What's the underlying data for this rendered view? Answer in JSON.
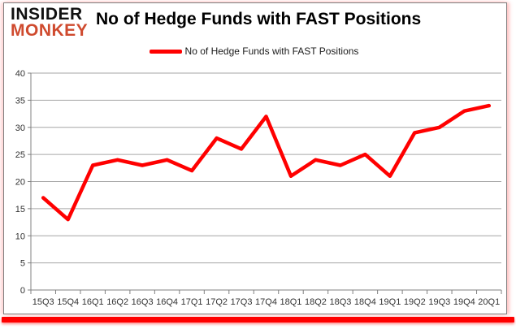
{
  "logo": {
    "line1": "INSIDER",
    "line2": "MONKEY"
  },
  "header": {
    "title": "No of Hedge Funds with FAST Positions"
  },
  "legend": {
    "label": "No of Hedge Funds with FAST Positions"
  },
  "colors": {
    "line": "#ff0000",
    "logo_text": "#111111",
    "logo_accent": "#cf4a2e",
    "gridline": "#a6a6a6",
    "axis": "#808080",
    "tick_label": "#333333",
    "frame_border": "#7f7f7f",
    "bottom_bar": "#ff0000"
  },
  "chart_data": {
    "type": "line",
    "title": "No of Hedge Funds with FAST Positions",
    "categories": [
      "15Q3",
      "15Q4",
      "16Q1",
      "16Q2",
      "16Q3",
      "16Q4",
      "17Q1",
      "17Q2",
      "17Q3",
      "17Q4",
      "18Q1",
      "18Q2",
      "18Q3",
      "18Q4",
      "19Q1",
      "19Q2",
      "19Q3",
      "19Q4",
      "20Q1"
    ],
    "series": [
      {
        "name": "No of Hedge Funds with FAST Positions",
        "values": [
          17,
          13,
          23,
          24,
          23,
          24,
          22,
          28,
          26,
          32,
          21,
          24,
          23,
          25,
          21,
          29,
          30,
          33,
          34
        ]
      }
    ],
    "xlabel": "",
    "ylabel": "",
    "ylim": [
      0,
      40
    ],
    "yticks": [
      0,
      5,
      10,
      15,
      20,
      25,
      30,
      35,
      40
    ],
    "grid": true,
    "legend_position": "top-center"
  }
}
